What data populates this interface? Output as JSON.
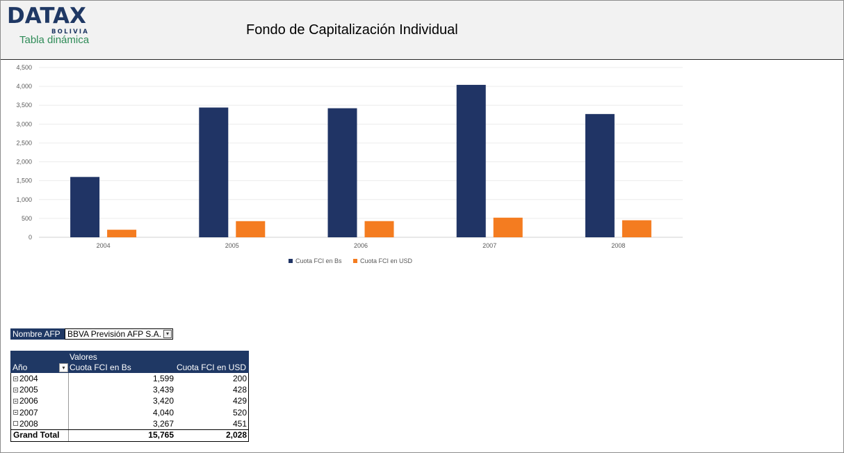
{
  "header": {
    "logo_text": "DATAX",
    "logo_sub": "BOLIVIA",
    "tagline": "Tabla dinámica",
    "title": "Fondo de Capitalización Individual"
  },
  "colors": {
    "navy": "#1f3864",
    "orange": "#f47c20",
    "green": "#2e8b57"
  },
  "chart_data": {
    "type": "bar",
    "categories": [
      "2004",
      "2005",
      "2006",
      "2007",
      "2008"
    ],
    "series": [
      {
        "name": "Cuota FCI en Bs",
        "color": "#203465",
        "values": [
          1599,
          3439,
          3420,
          4040,
          3267
        ]
      },
      {
        "name": "Cuota FCI en USD",
        "color": "#f47c20",
        "values": [
          200,
          428,
          429,
          520,
          451
        ]
      }
    ],
    "ylim": [
      0,
      4500
    ],
    "yticks": [
      "0",
      "500",
      "1,000",
      "1,500",
      "2,000",
      "2,500",
      "3,000",
      "3,500",
      "4,000",
      "4,500"
    ],
    "grid": true,
    "legend": "bottom"
  },
  "filter": {
    "label": "Nombre AFP",
    "value": "BBVA Previsión AFP S.A.",
    "icon": "filter-dropdown-icon"
  },
  "pivot": {
    "valores_label": "Valores",
    "col_year": "Año",
    "col_bs": "Cuota FCI en Bs",
    "col_usd": "Cuota FCI en USD",
    "rows": [
      {
        "year": "2004",
        "bs": "1,599",
        "usd": "200"
      },
      {
        "year": "2005",
        "bs": "3,439",
        "usd": "428"
      },
      {
        "year": "2006",
        "bs": "3,420",
        "usd": "429"
      },
      {
        "year": "2007",
        "bs": "4,040",
        "usd": "520"
      },
      {
        "year": "2008",
        "bs": "3,267",
        "usd": "451"
      }
    ],
    "total": {
      "label": "Grand Total",
      "bs": "15,765",
      "usd": "2,028"
    }
  }
}
